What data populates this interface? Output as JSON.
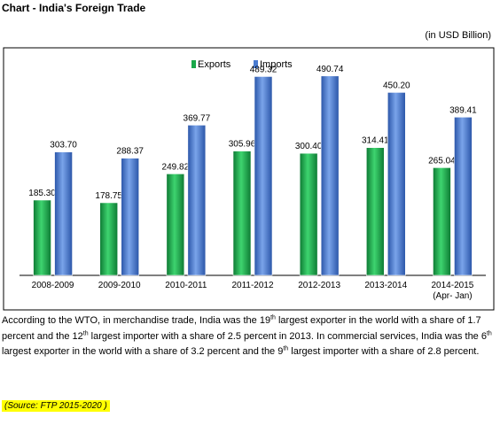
{
  "header": {
    "title": "Chart - India's Foreign Trade",
    "unit": "(in USD Billion)"
  },
  "chart_data": {
    "type": "bar",
    "categories": [
      "2008-2009",
      "2009-2010",
      "2010-2011",
      "2011-2012",
      "2012-2013",
      "2013-2014",
      "2014-2015"
    ],
    "category_sublabels": [
      "",
      "",
      "",
      "",
      "",
      "",
      "(Apr- Jan)"
    ],
    "series": [
      {
        "name": "Exports",
        "color": "#1aa84a",
        "values": [
          185.3,
          178.75,
          249.82,
          305.96,
          300.4,
          314.41,
          265.04
        ],
        "labels": [
          "185.30",
          "178.75",
          "249.82",
          "305.96",
          "300.40",
          "314.41",
          "265.04"
        ]
      },
      {
        "name": "Imports",
        "color": "#4a7bd0",
        "values": [
          303.7,
          288.37,
          369.77,
          489.32,
          490.74,
          450.2,
          389.41
        ],
        "labels": [
          "303.70",
          "288.37",
          "369.77",
          "489.32",
          "490.74",
          "450.20",
          "389.41"
        ]
      }
    ],
    "ylim": [
      0,
      560
    ],
    "legend": "top-center",
    "grid": false
  },
  "text": {
    "p1_a": "According to the WTO, in merchandise trade, India was the 19",
    "p1_sup1": "th",
    "p1_b": " largest exporter in the world with a share of 1.7 percent and the 12",
    "p1_sup2": "th",
    "p1_c": " largest importer with a share of 2.5 percent in 2013. In commercial services, India was the 6",
    "p1_sup3": "th",
    "p1_d": " largest exporter in the world with a share of 3.2 percent and the 9",
    "p1_sup4": "th",
    "p1_e": " largest importer with a share of 2.8 percent.",
    "source": "(Source: FTP 2015-2020 )"
  }
}
